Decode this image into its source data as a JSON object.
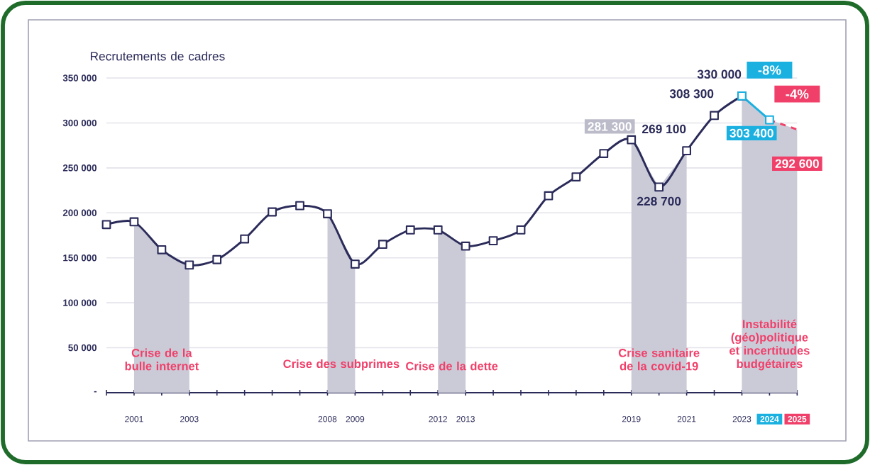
{
  "chart_data": {
    "type": "line",
    "ylabel": "Recrutements de cadres",
    "xlim": [
      2000,
      2025
    ],
    "ylim": [
      0,
      350000
    ],
    "xticks": [
      {
        "value": 2000,
        "label": null
      },
      {
        "value": 2001,
        "label": "2001"
      },
      {
        "value": 2002,
        "label": null
      },
      {
        "value": 2003,
        "label": "2003"
      },
      {
        "value": 2004,
        "label": null
      },
      {
        "value": 2005,
        "label": null
      },
      {
        "value": 2006,
        "label": null
      },
      {
        "value": 2007,
        "label": null
      },
      {
        "value": 2008,
        "label": "2008"
      },
      {
        "value": 2009,
        "label": "2009"
      },
      {
        "value": 2010,
        "label": null
      },
      {
        "value": 2011,
        "label": null
      },
      {
        "value": 2012,
        "label": "2012"
      },
      {
        "value": 2013,
        "label": "2013"
      },
      {
        "value": 2014,
        "label": null
      },
      {
        "value": 2015,
        "label": null
      },
      {
        "value": 2016,
        "label": null
      },
      {
        "value": 2017,
        "label": null
      },
      {
        "value": 2018,
        "label": null
      },
      {
        "value": 2019,
        "label": "2019"
      },
      {
        "value": 2020,
        "label": null
      },
      {
        "value": 2021,
        "label": "2021"
      },
      {
        "value": 2022,
        "label": null
      },
      {
        "value": 2023,
        "label": "2023"
      },
      {
        "value": 2024,
        "label": "2024"
      },
      {
        "value": 2025,
        "label": "2025"
      }
    ],
    "yticks": [
      {
        "value": 0,
        "label": "-"
      },
      {
        "value": 50000,
        "label": "50 000"
      },
      {
        "value": 100000,
        "label": "100 000"
      },
      {
        "value": 150000,
        "label": "150 000"
      },
      {
        "value": 200000,
        "label": "200 000"
      },
      {
        "value": 250000,
        "label": "250 000"
      },
      {
        "value": 300000,
        "label": "300 000"
      },
      {
        "value": 350000,
        "label": "350 000"
      }
    ],
    "grid": "y",
    "series": [
      {
        "x": [
          2000,
          2001,
          2002,
          2003,
          2004,
          2005,
          2006,
          2007,
          2008,
          2009,
          2010,
          2011,
          2012,
          2013,
          2014,
          2015,
          2016,
          2017,
          2018,
          2019,
          2020,
          2021,
          2022,
          2023
        ],
        "color": "#2b2b5a",
        "marker": "square",
        "line_style": "solid",
        "values": [
          187000,
          190000,
          159000,
          142000,
          148000,
          171000,
          201000,
          208000,
          199000,
          143000,
          165000,
          181000,
          181000,
          163000,
          169000,
          181000,
          219000,
          240000,
          266000,
          281300,
          228700,
          269100,
          308300,
          330000
        ],
        "value_labels": [
          null,
          null,
          null,
          null,
          null,
          null,
          null,
          null,
          null,
          null,
          null,
          null,
          null,
          null,
          null,
          null,
          null,
          null,
          null,
          "281 300",
          "228 700",
          "269 100",
          "308 300",
          "330 000"
        ]
      },
      {
        "x": [
          2023,
          2024
        ],
        "color": "#1ab0e0",
        "marker": "square",
        "line_style": "solid",
        "values": [
          330000,
          303400
        ],
        "value_labels": [
          null,
          "303 400"
        ]
      },
      {
        "x": [
          2024,
          2025
        ],
        "color": "#f0406a",
        "marker": "none",
        "line_style": "dashed",
        "values": [
          303400,
          292600
        ],
        "value_labels": [
          null,
          "292 600"
        ]
      }
    ],
    "bands": [
      {
        "axis": "x",
        "from": 2001,
        "to": 2003,
        "label": "Crise de la bulle internet",
        "color": "#cbcbd8"
      },
      {
        "axis": "x",
        "from": 2008,
        "to": 2009,
        "label": "Crise des subprimes",
        "color": "#cbcbd8"
      },
      {
        "axis": "x",
        "from": 2012,
        "to": 2013,
        "label": "Crise de la dette",
        "color": "#cbcbd8"
      },
      {
        "axis": "x",
        "from": 2019,
        "to": 2021,
        "label": "Crise sanitaire de la covid-19",
        "color": "#cbcbd8"
      },
      {
        "axis": "x",
        "from": 2023,
        "to": 2025,
        "label": "Instabilité (géo)politique et incertitudes budgétaires",
        "color": "#cbcbd8"
      }
    ],
    "annotations": [
      "-8%",
      "-4%"
    ]
  }
}
